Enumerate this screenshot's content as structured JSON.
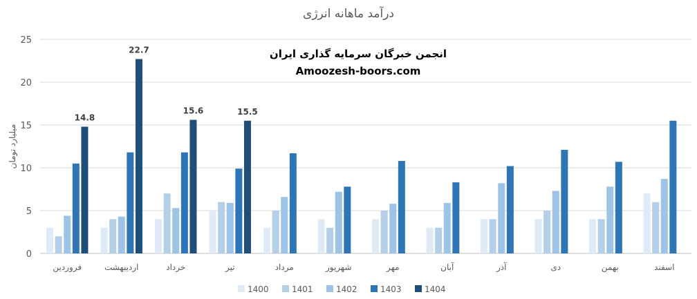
{
  "chart_data": {
    "type": "bar",
    "title": "درآمد ماهانه انرژی",
    "ylabel": "میلیارد تومان",
    "xlabel": "",
    "ylim": [
      0,
      25
    ],
    "yticks": [
      "0",
      "5",
      "10",
      "15",
      "20",
      "25"
    ],
    "grid": true,
    "legend_position": "bottom",
    "categories": [
      "فروردین",
      "اردیبهشت",
      "خرداد",
      "تیر",
      "مرداد",
      "شهریور",
      "مهر",
      "آبان",
      "آذر",
      "دی",
      "بهمن",
      "اسفند"
    ],
    "series": [
      {
        "name": "1400",
        "color": "#deebf7",
        "values": [
          3,
          3,
          4,
          5,
          3,
          4,
          4,
          3,
          4,
          4,
          4,
          7
        ]
      },
      {
        "name": "1401",
        "color": "#b4cfe8",
        "values": [
          2,
          4,
          7,
          6,
          5,
          3,
          5,
          3,
          4,
          5,
          4,
          6
        ]
      },
      {
        "name": "1402",
        "color": "#9dc3e6",
        "values": [
          4.4,
          4.3,
          5.3,
          5.9,
          6.6,
          7.2,
          5.8,
          5.9,
          8.2,
          7.3,
          7.8,
          8.7
        ]
      },
      {
        "name": "1403",
        "color": "#2e75b6",
        "values": [
          10.5,
          11.8,
          11.8,
          9.9,
          11.7,
          7.8,
          10.8,
          8.3,
          10.2,
          12.1,
          10.7,
          15.5
        ]
      },
      {
        "name": "1404",
        "color": "#1f4e79",
        "values": [
          14.8,
          22.7,
          15.6,
          15.5,
          null,
          null,
          null,
          null,
          null,
          null,
          null,
          null
        ]
      }
    ],
    "data_labels": {
      "series": "1404",
      "labels": [
        "14.8",
        "22.7",
        "15.6",
        "15.5"
      ]
    }
  },
  "watermark": {
    "line1": "انجمن خبرگان سرمایه گذاری ایران",
    "line2": "Amoozesh-boors.com"
  }
}
